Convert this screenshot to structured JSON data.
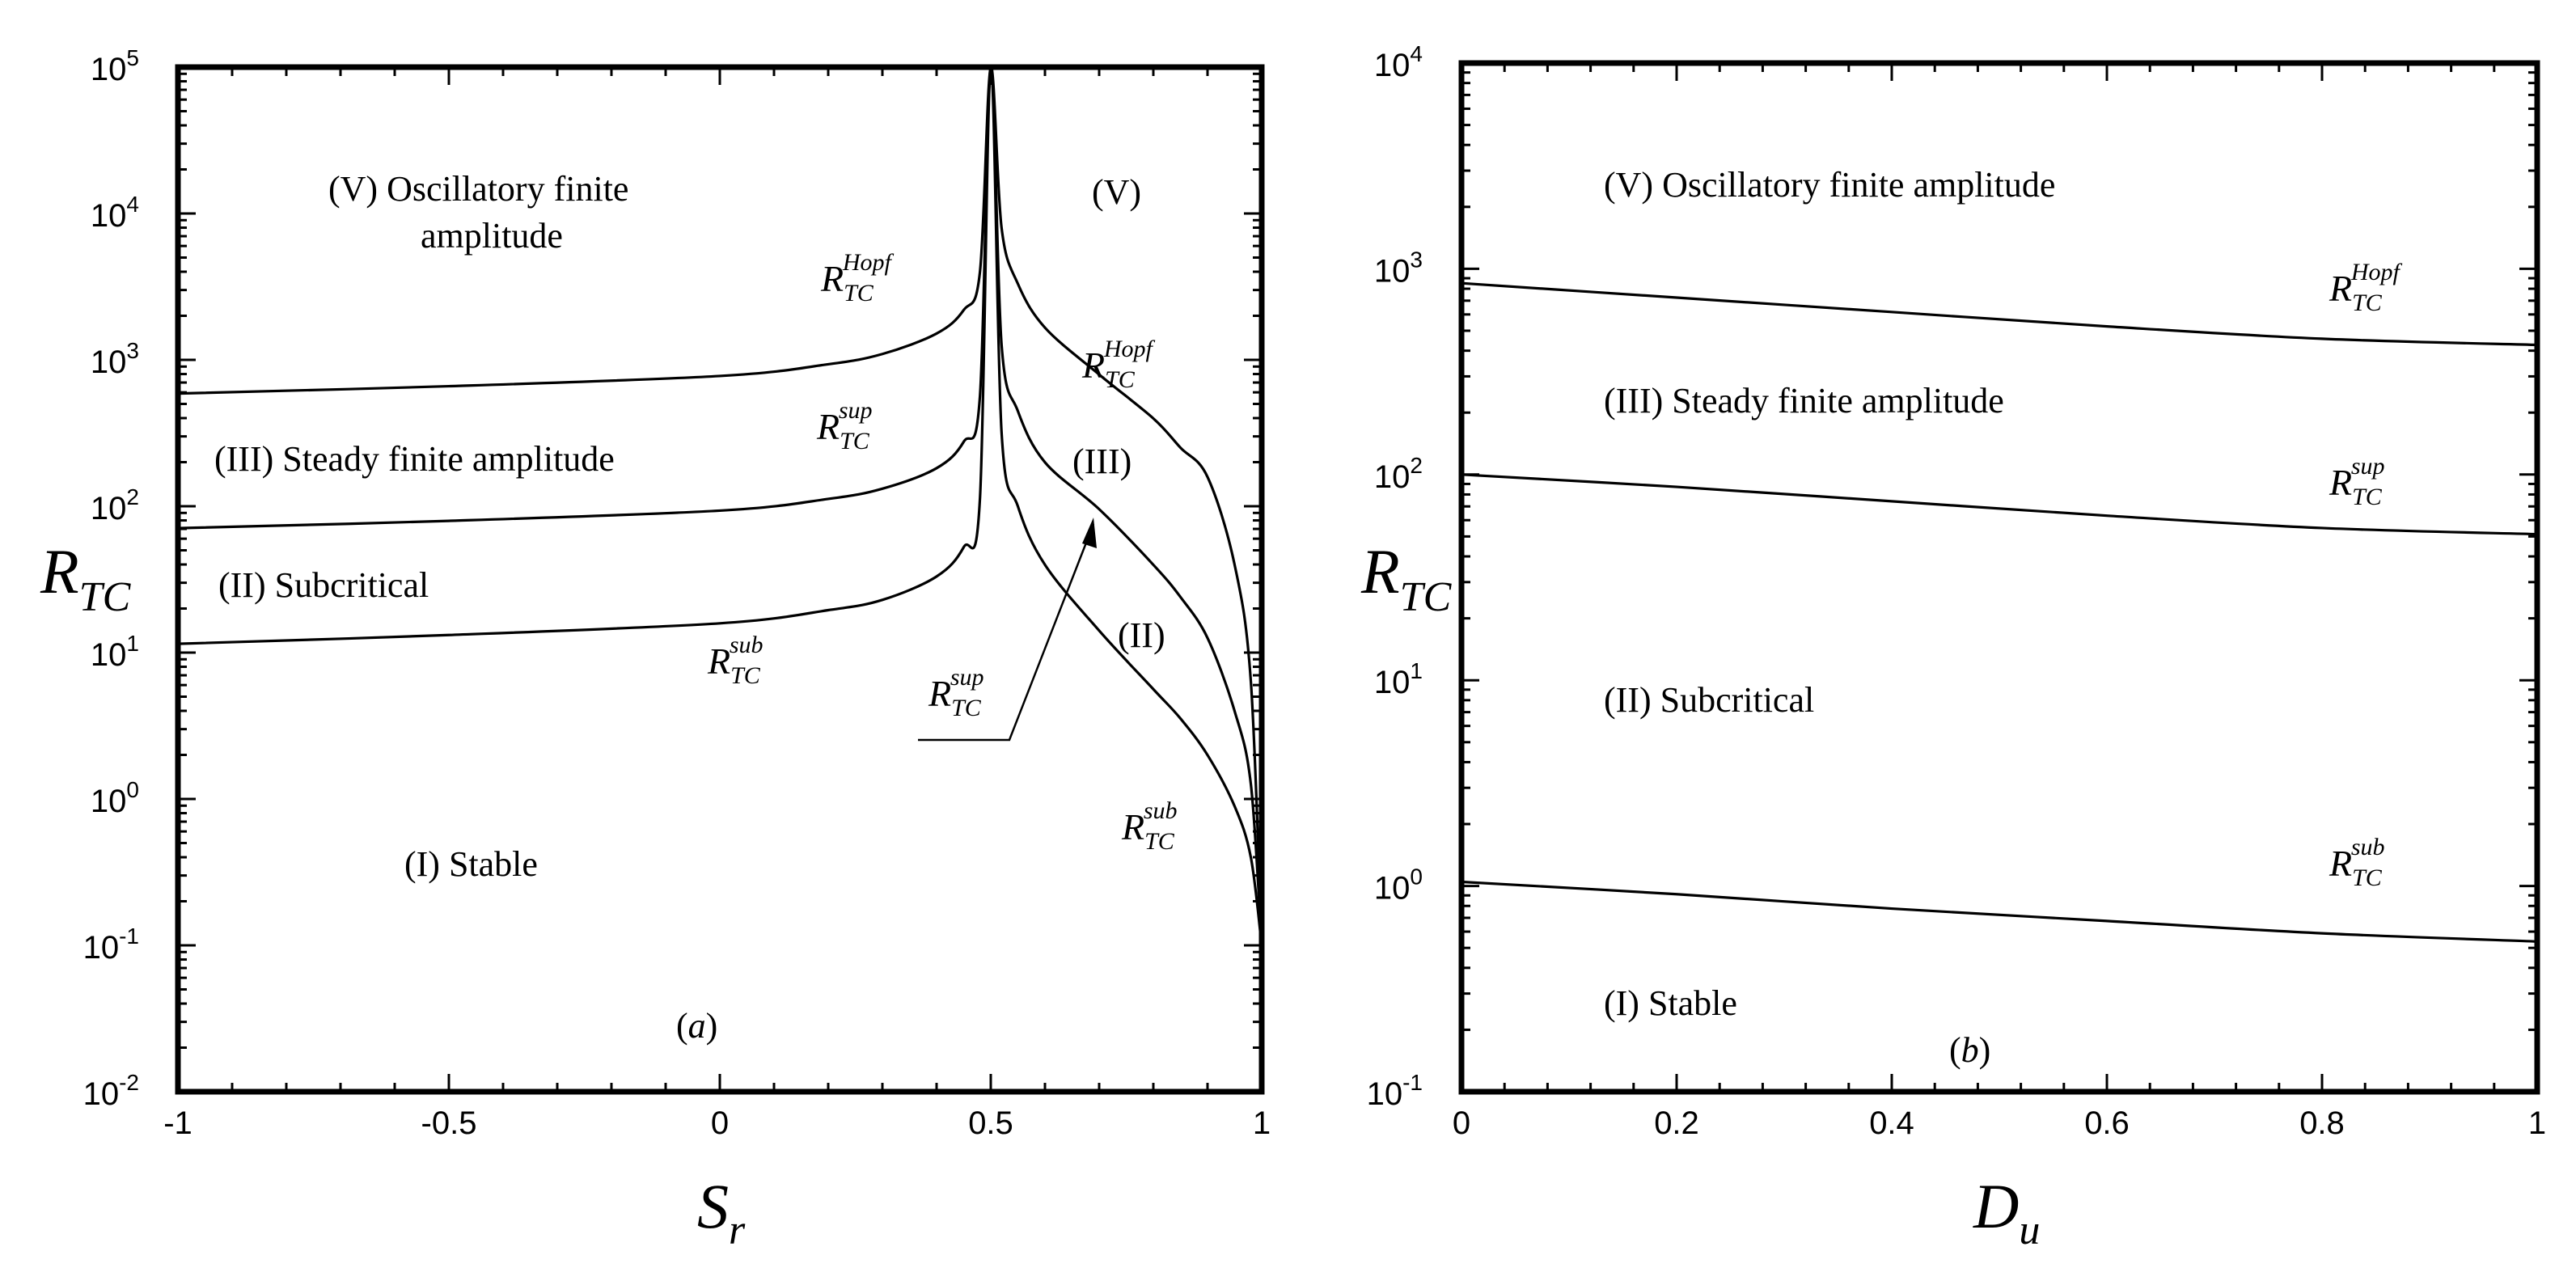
{
  "chart_data": [
    {
      "panel": "(a)",
      "type": "line",
      "xlabel": {
        "base": "S",
        "sub": "r"
      },
      "ylabel": {
        "base": "R",
        "sub": "TC"
      },
      "xlim": [
        -1,
        1
      ],
      "ylim_log10": [
        -2,
        5
      ],
      "xticks": [
        "-1",
        "-0.5",
        "0",
        "0.5",
        "1"
      ],
      "xtick_values": [
        -1,
        -0.5,
        0,
        0.5,
        1
      ],
      "yticks": [
        {
          "value": -2,
          "base": "10",
          "exp": "-2"
        },
        {
          "value": -1,
          "base": "10",
          "exp": "-1"
        },
        {
          "value": 0,
          "base": "10",
          "exp": "0"
        },
        {
          "value": 1,
          "base": "10",
          "exp": "1"
        },
        {
          "value": 2,
          "base": "10",
          "exp": "2"
        },
        {
          "value": 3,
          "base": "10",
          "exp": "3"
        },
        {
          "value": 4,
          "base": "10",
          "exp": "4"
        },
        {
          "value": 5,
          "base": "10",
          "exp": "5"
        }
      ],
      "series": [
        {
          "name": "R_TC^Hopf",
          "x": [
            -1,
            -0.5,
            0,
            0.2,
            0.3,
            0.4,
            0.45,
            0.48,
            0.5,
            0.52,
            0.55,
            0.6,
            0.7,
            0.8,
            0.85,
            0.9,
            0.95,
            0.98,
            1.0
          ],
          "log10y": [
            2.77,
            2.82,
            2.89,
            2.97,
            3.04,
            3.18,
            3.34,
            3.6,
            5.0,
            3.9,
            3.52,
            3.22,
            2.9,
            2.6,
            2.4,
            2.2,
            1.6,
            0.8,
            -1.0
          ]
        },
        {
          "name": "R_TC^sup",
          "x": [
            -1,
            -0.5,
            0,
            0.2,
            0.3,
            0.4,
            0.45,
            0.48,
            0.5,
            0.52,
            0.55,
            0.6,
            0.7,
            0.8,
            0.85,
            0.9,
            0.95,
            0.98,
            1.0
          ],
          "log10y": [
            1.85,
            1.9,
            1.97,
            2.05,
            2.12,
            2.26,
            2.44,
            2.75,
            5.0,
            3.1,
            2.65,
            2.3,
            1.98,
            1.6,
            1.38,
            1.1,
            0.6,
            0.1,
            -1.0
          ]
        },
        {
          "name": "R_TC^sub",
          "x": [
            -1,
            -0.5,
            0,
            0.2,
            0.3,
            0.4,
            0.45,
            0.48,
            0.5,
            0.52,
            0.55,
            0.6,
            0.7,
            0.8,
            0.85,
            0.9,
            0.95,
            0.98,
            1.0
          ],
          "log10y": [
            1.06,
            1.12,
            1.2,
            1.29,
            1.36,
            1.52,
            1.72,
            2.05,
            5.0,
            2.5,
            2.0,
            1.6,
            1.15,
            0.75,
            0.55,
            0.3,
            -0.05,
            -0.4,
            -1.0
          ]
        }
      ],
      "labels": {
        "region5": "(V) Oscillatory finite",
        "region5_line2": "amplitude",
        "region5_right": "(V)",
        "region3": "(III) Steady finite amplitude",
        "region3_right": "(III)",
        "region2": "(II) Subcritical",
        "region2_right": "(II)",
        "region1": "(I) Stable",
        "panel": "(a)",
        "R": "R",
        "TC": "TC",
        "hopf": "Hopf",
        "sup": "sup",
        "sub": "sub"
      }
    },
    {
      "panel": "(b)",
      "type": "line",
      "xlabel": {
        "base": "D",
        "sub": "u"
      },
      "ylabel": {
        "base": "R",
        "sub": "TC"
      },
      "xlim": [
        0,
        1
      ],
      "ylim_log10": [
        -1,
        4
      ],
      "xticks": [
        "0",
        "0.2",
        "0.4",
        "0.6",
        "0.8",
        "1"
      ],
      "xtick_values": [
        0,
        0.2,
        0.4,
        0.6,
        0.8,
        1
      ],
      "yticks": [
        {
          "value": -1,
          "base": "10",
          "exp": "-1"
        },
        {
          "value": 0,
          "base": "10",
          "exp": "0"
        },
        {
          "value": 1,
          "base": "10",
          "exp": "1"
        },
        {
          "value": 2,
          "base": "10",
          "exp": "2"
        },
        {
          "value": 3,
          "base": "10",
          "exp": "3"
        },
        {
          "value": 4,
          "base": "10",
          "exp": "4"
        }
      ],
      "series": [
        {
          "name": "R_TC^Hopf",
          "x": [
            0,
            0.2,
            0.4,
            0.6,
            0.8,
            1.0
          ],
          "log10y": [
            2.93,
            2.86,
            2.79,
            2.72,
            2.66,
            2.63
          ]
        },
        {
          "name": "R_TC^sup",
          "x": [
            0,
            0.2,
            0.4,
            0.6,
            0.8,
            1.0
          ],
          "log10y": [
            2.0,
            1.94,
            1.87,
            1.8,
            1.74,
            1.71
          ]
        },
        {
          "name": "R_TC^sub",
          "x": [
            0,
            0.2,
            0.4,
            0.6,
            0.8,
            1.0
          ],
          "log10y": [
            0.02,
            -0.04,
            -0.11,
            -0.17,
            -0.23,
            -0.27
          ]
        }
      ],
      "labels": {
        "region5": "(V) Oscillatory finite amplitude",
        "region3": "(III) Steady finite amplitude",
        "region2": "(II) Subcritical",
        "region1": "(I) Stable",
        "panel": "(b)",
        "R": "R",
        "TC": "TC",
        "hopf": "Hopf",
        "sup": "sup",
        "sub": "sub"
      }
    }
  ]
}
